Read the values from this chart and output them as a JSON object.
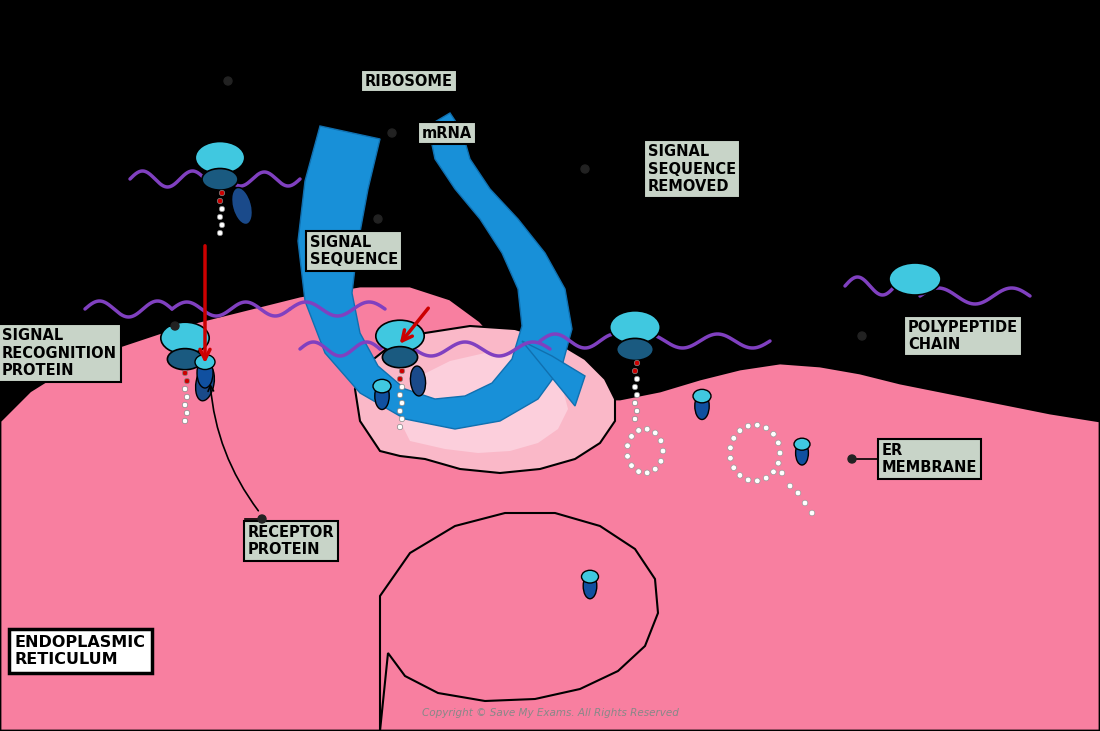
{
  "bg_color": "#000000",
  "er_pink": "#f87fa0",
  "er_pink2": "#fab8c8",
  "er_pink3": "#fccfdc",
  "er_pink_inner": "#fce8ef",
  "ribosome_cyan": "#40c8e0",
  "ribosome_dark": "#1a5a80",
  "srp_dark": "#1a4a8a",
  "mrna_purple": "#8040c0",
  "signal_blue": "#1890d8",
  "chain_white": "#ffffff",
  "label_bg": "#c8d4c8",
  "red_arrow": "#cc0000",
  "black": "#000000",
  "copyright": "Copyright © Save My Exams. All Rights Reserved",
  "labels": {
    "ribosome": "RIBOSOME",
    "mrna": "mRNA",
    "signal_seq": "SIGNAL\nSEQUENCE",
    "signal_removed": "SIGNAL\nSEQUENCE\nREMOVED",
    "srp": "SIGNAL\nRECOGNITION\nPROTEIN",
    "polypeptide": "POLYPEPTIDE\nCHAIN",
    "er_membrane": "ER\nMEMBRANE",
    "receptor": "RECEPTOR\nPROTEIN",
    "er": "ENDOPLASMIC\nRETICULUM"
  }
}
